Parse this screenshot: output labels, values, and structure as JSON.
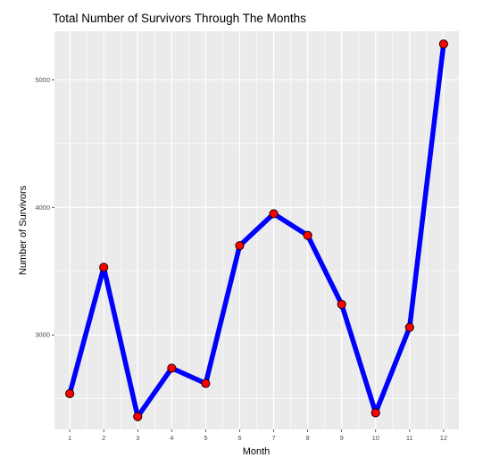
{
  "chart_data": {
    "type": "line",
    "title": "Total Number of Survivors Through The Months",
    "xlabel": "Month",
    "ylabel": "Number of Survivors",
    "x": [
      1,
      2,
      3,
      4,
      5,
      6,
      7,
      8,
      9,
      10,
      11,
      12
    ],
    "x_tick_labels": [
      "1",
      "2",
      "3",
      "4",
      "5",
      "6",
      "7",
      "8",
      "9",
      "10",
      "11",
      "12"
    ],
    "y_ticks": [
      3000,
      4000,
      5000
    ],
    "y_tick_labels": [
      "3000",
      "4000",
      "5000"
    ],
    "xlim": [
      0.55,
      12.45
    ],
    "ylim": [
      2260,
      5380
    ],
    "grid": true,
    "series": [
      {
        "values": [
          2540,
          3530,
          2360,
          2740,
          2620,
          3700,
          3950,
          3780,
          3240,
          2390,
          3060,
          5280
        ],
        "line_color": "#0000ff",
        "point_fill": "#ff0000",
        "point_stroke": "#000000"
      }
    ],
    "panel_background": "#ebebeb",
    "grid_color": "#ffffff"
  }
}
